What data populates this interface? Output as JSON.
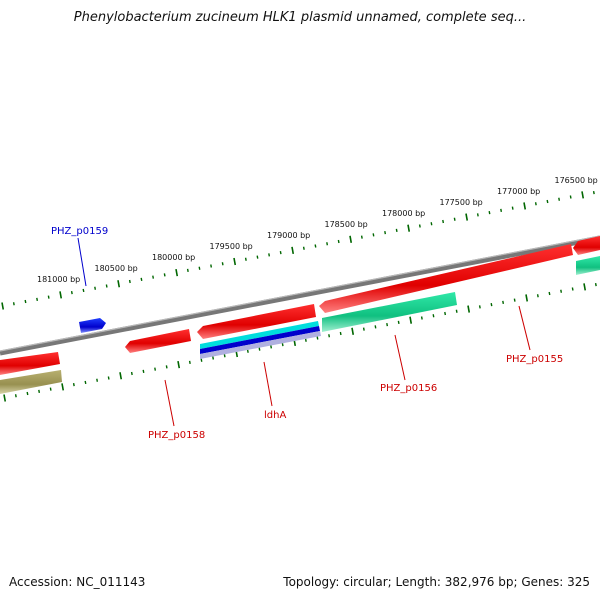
{
  "title": "Phenylobacterium zucineum HLK1 plasmid unnamed, complete seq...",
  "footer": {
    "accession": "Accession: NC_011143",
    "summary": "Topology: circular; Length: 382,976 bp; Genes: 325"
  },
  "ruler": {
    "ticks": [
      "181000 bp",
      "180500 bp",
      "180000 bp",
      "179500 bp",
      "179000 bp",
      "178500 bp",
      "178000 bp",
      "177500 bp",
      "177000 bp",
      "176500 bp"
    ]
  },
  "genes": [
    {
      "name": "PHZ_p0159",
      "color": "#0000cc",
      "labeled": true
    },
    {
      "name": "PHZ_p0158",
      "color": "#cc0000",
      "labeled": true
    },
    {
      "name": "ldhA",
      "color": "#cc0000",
      "labeled": true
    },
    {
      "name": "PHZ_p0156",
      "color": "#cc0000",
      "labeled": true
    },
    {
      "name": "PHZ_p0155",
      "color": "#cc0000",
      "labeled": true
    }
  ],
  "colors": {
    "backbone": "#808080",
    "forward_gene": "#ee0000",
    "cds_feature": "#22dd99",
    "highlight_cyan": "#00dddd",
    "highlight_blue": "#0000cc",
    "olive_feature": "#a8a060",
    "ruler_tick": "#006600"
  }
}
